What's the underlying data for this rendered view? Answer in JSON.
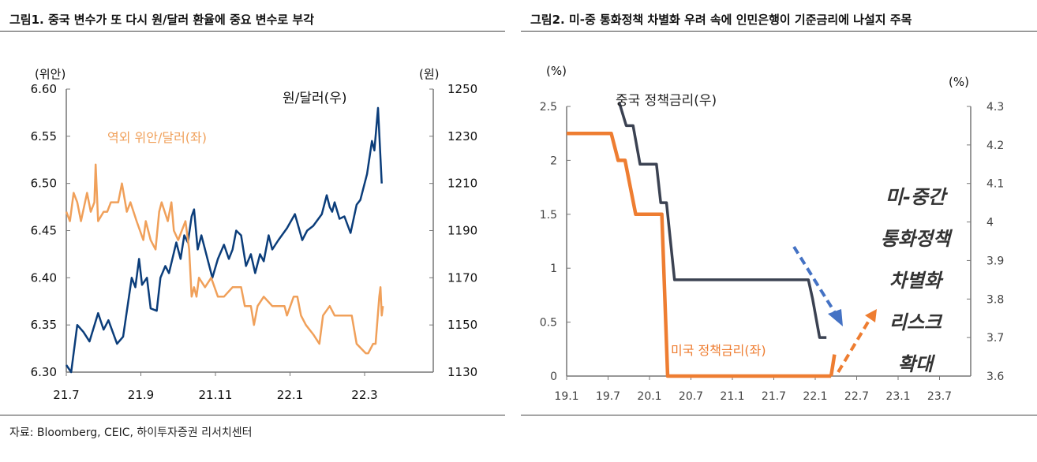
{
  "titles": {
    "left": "그림1.  중국 변수가 또 다시 원/달러 환율에 중요 변수로 부각",
    "right": "그림2.  미-중 통화정책 차별화 우려 속에 인민은행이 기준금리에 나설지 주목"
  },
  "source": "자료: Bloomberg, CEIC, 하이투자증권 리서치센터",
  "chart_data": [
    {
      "type": "line",
      "left_unit": "(위안)",
      "right_unit": "(원)",
      "ylim_left": [
        6.3,
        6.6
      ],
      "ylim_right": [
        1130,
        1250
      ],
      "yticks_left": [
        "6.30",
        "6.35",
        "6.40",
        "6.45",
        "6.50",
        "6.55",
        "6.60"
      ],
      "yticks_right": [
        "1130",
        "1150",
        "1170",
        "1190",
        "1210",
        "1230",
        "1250"
      ],
      "xticks": [
        "21.7",
        "21.9",
        "21.11",
        "22.1",
        "22.3"
      ],
      "series": [
        {
          "name": "원/달러(우)",
          "axis": "right",
          "color": "#0b3d7a",
          "points": [
            [
              "2021-07-01",
              1133
            ],
            [
              "2021-07-05",
              1130
            ],
            [
              "2021-07-10",
              1150
            ],
            [
              "2021-07-15",
              1147
            ],
            [
              "2021-07-20",
              1143
            ],
            [
              "2021-07-27",
              1155
            ],
            [
              "2021-08-01",
              1148
            ],
            [
              "2021-08-05",
              1152
            ],
            [
              "2021-08-12",
              1142
            ],
            [
              "2021-08-17",
              1145
            ],
            [
              "2021-08-24",
              1170
            ],
            [
              "2021-08-27",
              1166
            ],
            [
              "2021-08-30",
              1178
            ],
            [
              "2021-09-02",
              1167
            ],
            [
              "2021-09-06",
              1170
            ],
            [
              "2021-09-09",
              1157
            ],
            [
              "2021-09-14",
              1156
            ],
            [
              "2021-09-17",
              1170
            ],
            [
              "2021-09-21",
              1175
            ],
            [
              "2021-09-24",
              1172
            ],
            [
              "2021-09-30",
              1185
            ],
            [
              "2021-10-03",
              1178
            ],
            [
              "2021-10-06",
              1188
            ],
            [
              "2021-10-09",
              1185
            ],
            [
              "2021-10-12",
              1196
            ],
            [
              "2021-10-14",
              1199
            ],
            [
              "2021-10-17",
              1182
            ],
            [
              "2021-10-20",
              1188
            ],
            [
              "2021-10-25",
              1178
            ],
            [
              "2021-10-29",
              1170
            ],
            [
              "2021-11-03",
              1178
            ],
            [
              "2021-11-08",
              1184
            ],
            [
              "2021-11-12",
              1178
            ],
            [
              "2021-11-15",
              1182
            ],
            [
              "2021-11-18",
              1190
            ],
            [
              "2021-11-22",
              1188
            ],
            [
              "2021-11-26",
              1175
            ],
            [
              "2021-11-30",
              1180
            ],
            [
              "2021-12-03",
              1172
            ],
            [
              "2021-12-07",
              1180
            ],
            [
              "2021-12-10",
              1177
            ],
            [
              "2021-12-14",
              1188
            ],
            [
              "2021-12-17",
              1182
            ],
            [
              "2021-12-22",
              1186
            ],
            [
              "2021-12-29",
              1191
            ],
            [
              "2022-01-05",
              1197
            ],
            [
              "2022-01-11",
              1186
            ],
            [
              "2022-01-15",
              1190
            ],
            [
              "2022-01-20",
              1192
            ],
            [
              "2022-01-27",
              1197
            ],
            [
              "2022-01-31",
              1205
            ],
            [
              "2022-02-03",
              1200
            ],
            [
              "2022-02-05",
              1198
            ],
            [
              "2022-02-07",
              1202
            ],
            [
              "2022-02-11",
              1195
            ],
            [
              "2022-02-15",
              1196
            ],
            [
              "2022-02-20",
              1189
            ],
            [
              "2022-02-25",
              1201
            ],
            [
              "2022-02-28",
              1203
            ],
            [
              "2022-03-03",
              1214
            ],
            [
              "2022-03-07",
              1228
            ],
            [
              "2022-03-09",
              1224
            ],
            [
              "2022-03-12",
              1242
            ],
            [
              "2022-03-15",
              1210
            ]
          ]
        },
        {
          "name": "역외 위안/달러(좌)",
          "axis": "left",
          "color": "#f0a05a",
          "points": [
            [
              "2021-07-01",
              6.47
            ],
            [
              "2021-07-04",
              6.46
            ],
            [
              "2021-07-07",
              6.49
            ],
            [
              "2021-07-10",
              6.48
            ],
            [
              "2021-07-13",
              6.46
            ],
            [
              "2021-07-18",
              6.49
            ],
            [
              "2021-07-21",
              6.47
            ],
            [
              "2021-07-24",
              6.48
            ],
            [
              "2021-07-25",
              6.52
            ],
            [
              "2021-07-27",
              6.46
            ],
            [
              "2021-08-01",
              6.47
            ],
            [
              "2021-08-04",
              6.47
            ],
            [
              "2021-08-07",
              6.48
            ],
            [
              "2021-08-13",
              6.48
            ],
            [
              "2021-08-16",
              6.5
            ],
            [
              "2021-08-20",
              6.47
            ],
            [
              "2021-08-23",
              6.48
            ],
            [
              "2021-08-28",
              6.46
            ],
            [
              "2021-09-03",
              6.44
            ],
            [
              "2021-09-05",
              6.46
            ],
            [
              "2021-09-09",
              6.44
            ],
            [
              "2021-09-13",
              6.43
            ],
            [
              "2021-09-16",
              6.47
            ],
            [
              "2021-09-18",
              6.48
            ],
            [
              "2021-09-23",
              6.46
            ],
            [
              "2021-09-26",
              6.48
            ],
            [
              "2021-09-28",
              6.45
            ],
            [
              "2021-10-01",
              6.44
            ],
            [
              "2021-10-07",
              6.46
            ],
            [
              "2021-10-10",
              6.43
            ],
            [
              "2021-10-12",
              6.38
            ],
            [
              "2021-10-14",
              6.39
            ],
            [
              "2021-10-16",
              6.38
            ],
            [
              "2021-10-18",
              6.4
            ],
            [
              "2021-10-23",
              6.39
            ],
            [
              "2021-10-28",
              6.4
            ],
            [
              "2021-11-03",
              6.38
            ],
            [
              "2021-11-08",
              6.38
            ],
            [
              "2021-11-15",
              6.39
            ],
            [
              "2021-11-22",
              6.39
            ],
            [
              "2021-11-25",
              6.37
            ],
            [
              "2021-11-30",
              6.37
            ],
            [
              "2021-12-02",
              6.35
            ],
            [
              "2021-12-05",
              6.37
            ],
            [
              "2021-12-10",
              6.38
            ],
            [
              "2021-12-17",
              6.37
            ],
            [
              "2021-12-27",
              6.37
            ],
            [
              "2021-12-29",
              6.36
            ],
            [
              "2022-01-04",
              6.38
            ],
            [
              "2022-01-07",
              6.38
            ],
            [
              "2022-01-10",
              6.36
            ],
            [
              "2022-01-14",
              6.35
            ],
            [
              "2022-01-20",
              6.34
            ],
            [
              "2022-01-25",
              6.33
            ],
            [
              "2022-01-28",
              6.36
            ],
            [
              "2022-02-03",
              6.37
            ],
            [
              "2022-02-07",
              6.36
            ],
            [
              "2022-02-14",
              6.36
            ],
            [
              "2022-02-21",
              6.36
            ],
            [
              "2022-02-25",
              6.33
            ],
            [
              "2022-03-02",
              6.32
            ],
            [
              "2022-03-04",
              6.32
            ],
            [
              "2022-03-08",
              6.33
            ],
            [
              "2022-03-10",
              6.33
            ],
            [
              "2022-03-13",
              6.38
            ],
            [
              "2022-03-14",
              6.39
            ],
            [
              "2022-03-15",
              6.36
            ],
            [
              "2022-03-16",
              6.37
            ]
          ]
        }
      ]
    },
    {
      "type": "line",
      "left_unit": "(%)",
      "right_unit": "(%)",
      "ylim_left": [
        0,
        2.5
      ],
      "ylim_right": [
        3.6,
        4.3
      ],
      "yticks_left": [
        "0",
        "0.5",
        "1",
        "1.5",
        "2",
        "2.5"
      ],
      "yticks_right": [
        "3.6",
        "3.7",
        "3.8",
        "3.9",
        "4",
        "4.1",
        "4.2",
        "4.3"
      ],
      "xticks": [
        "19.1",
        "19.7",
        "20.1",
        "20.7",
        "21.1",
        "21.7",
        "22.1",
        "22.7",
        "23.1",
        "23.7"
      ],
      "series": [
        {
          "name": "미국 정책금리(좌)",
          "axis": "left",
          "color": "#ee7d31",
          "points": [
            [
              "2019-01-01",
              2.25
            ],
            [
              "2019-07-15",
              2.25
            ],
            [
              "2019-08-15",
              2.0
            ],
            [
              "2019-09-15",
              2.0
            ],
            [
              "2019-11-01",
              1.5
            ],
            [
              "2020-02-25",
              1.5
            ],
            [
              "2020-03-20",
              0
            ],
            [
              "2022-03-10",
              0
            ]
          ]
        },
        {
          "name": "",
          "axis": "left",
          "color": "#ee7d31",
          "points": [
            [
              "2022-03-10",
              0
            ],
            [
              "2022-03-25",
              0.2
            ]
          ]
        },
        {
          "name": "중국 정책금리(우)",
          "axis": "right",
          "color": "#3b4252",
          "points": [
            [
              "2019-08-20",
              4.31
            ],
            [
              "2019-09-20",
              4.25
            ],
            [
              "2019-10-20",
              4.25
            ],
            [
              "2019-11-20",
              4.15
            ],
            [
              "2019-12-20",
              4.15
            ],
            [
              "2020-02-01",
              4.15
            ],
            [
              "2020-02-20",
              4.05
            ],
            [
              "2020-03-15",
              4.05
            ],
            [
              "2020-04-20",
              3.85
            ],
            [
              "2021-12-01",
              3.85
            ],
            [
              "2021-12-20",
              3.8
            ],
            [
              "2022-01-20",
              3.7
            ],
            [
              "2022-02-20",
              3.7
            ]
          ]
        }
      ],
      "annotation": [
        "미-중간",
        "통화정책",
        "차별화",
        "리스크",
        "확대"
      ],
      "arrow_colors": {
        "down": "#4472c4",
        "up": "#ee7d31"
      }
    }
  ]
}
